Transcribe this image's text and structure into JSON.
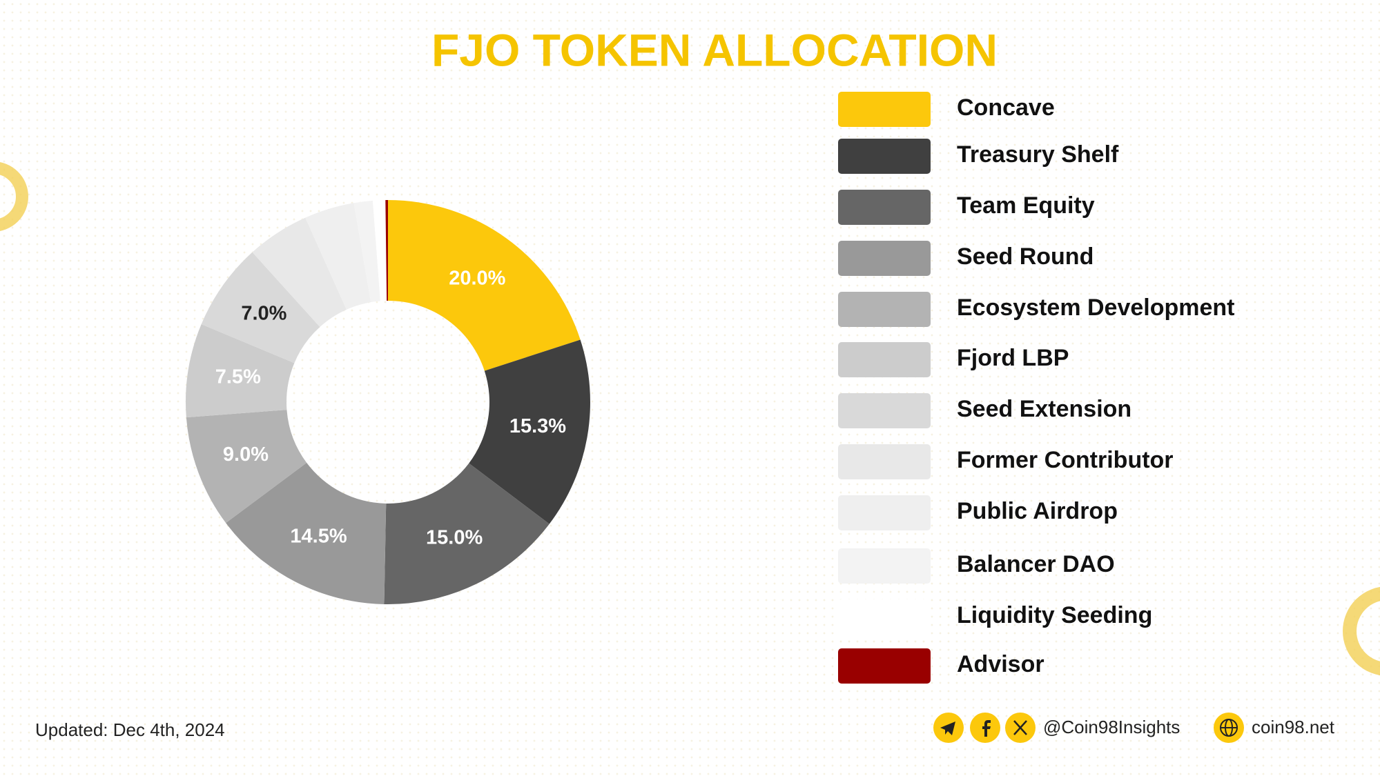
{
  "chart_data": {
    "type": "pie",
    "title": "FJO TOKEN ALLOCATION",
    "categories": [
      "Concave",
      "Treasury Shelf",
      "Team Equity",
      "Seed Round",
      "Ecosystem Development",
      "Fjord LBP",
      "Seed Extension",
      "Former Contributor",
      "Public Airdrop",
      "Balancer DAO",
      "Liquidity Seeding",
      "Advisor"
    ],
    "values": [
      20.0,
      15.3,
      15.0,
      14.5,
      9.0,
      7.5,
      7.0,
      5.0,
      4.0,
      1.5,
      1.0,
      0.2
    ],
    "value_labels": [
      "20.0%",
      "15.3%",
      "15.0%",
      "14.5%",
      "9.0%",
      "7.5%",
      "7.0%",
      null,
      null,
      null,
      null,
      null
    ],
    "colors": [
      "#fcc80c",
      "#404040",
      "#666666",
      "#999999",
      "#b3b3b3",
      "#cccccc",
      "#d9d9d9",
      "#e8e8e8",
      "#efefef",
      "#f3f3f3",
      "#ffffff",
      "#990000"
    ],
    "label_colors": [
      "#ffffff",
      "#ffffff",
      "#ffffff",
      "#ffffff",
      "#ffffff",
      "#ffffff",
      "#222222",
      null,
      null,
      null,
      null,
      null
    ]
  },
  "footer": {
    "updated": "Updated: Dec 4th, 2024",
    "social_handle": "@Coin98Insights",
    "website": "coin98.net"
  }
}
